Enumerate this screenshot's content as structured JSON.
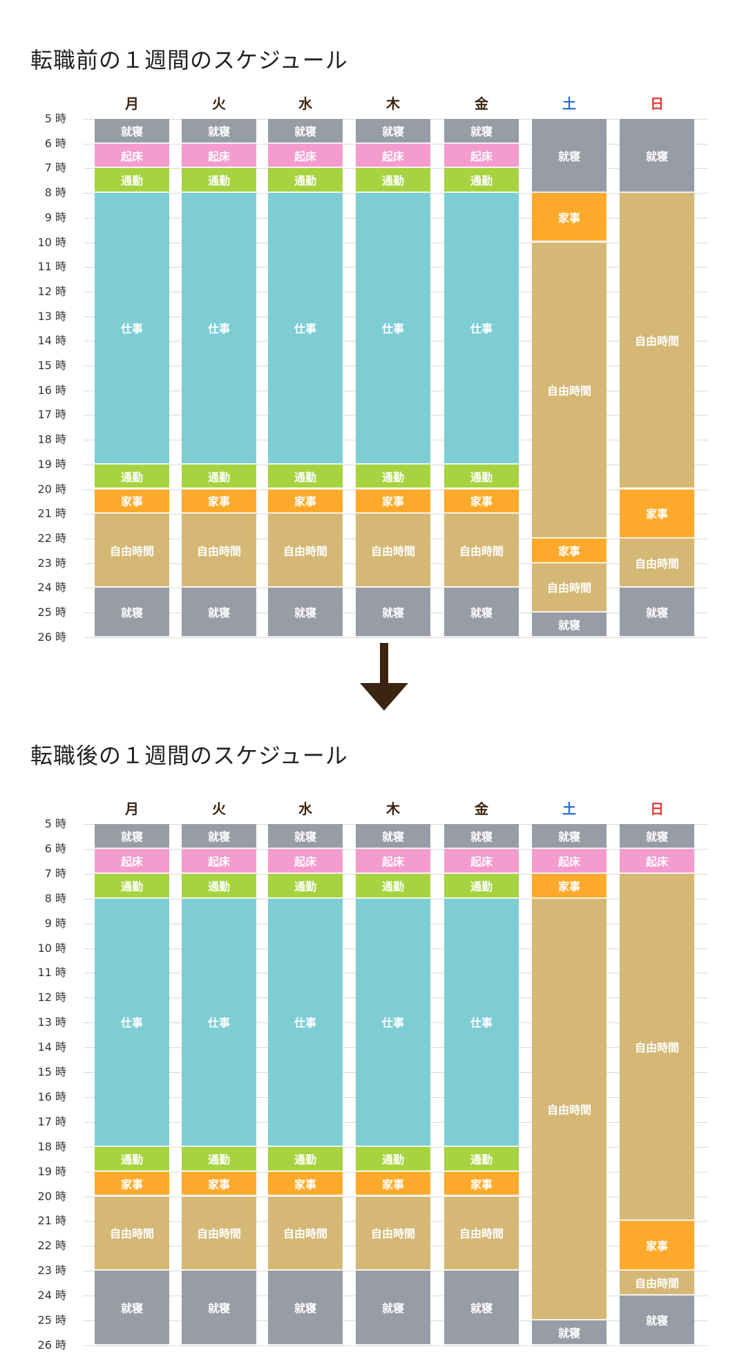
{
  "colors": {
    "就寝": "#989ca6",
    "起床": "#f49ccd",
    "通勤": "#a6d33f",
    "仕事": "#7ecdd5",
    "家事": "#fdaa2c",
    "自由時間": "#d5b876",
    "weekday_header": "#3b2410",
    "saturday_header": "#2f6fcf",
    "sunday_header": "#e03a3a",
    "arrow": "#3b2410"
  },
  "arrow_icon": "down-arrow-icon",
  "chart_data": [
    {
      "type": "table",
      "title": "転職前の１週間のスケジュール",
      "days": [
        "月",
        "火",
        "水",
        "木",
        "金",
        "土",
        "日"
      ],
      "hour_range": [
        5,
        26
      ],
      "hour_labels": [
        "5 時",
        "6 時",
        "7 時",
        "8 時",
        "9 時",
        "10 時",
        "11 時",
        "12 時",
        "13 時",
        "14 時",
        "15 時",
        "16 時",
        "17 時",
        "18 時",
        "19 時",
        "20 時",
        "21 時",
        "22 時",
        "23 時",
        "24 時",
        "25 時",
        "26 時"
      ],
      "schedule": [
        [
          {
            "start": 5,
            "end": 6,
            "activity": "就寝"
          },
          {
            "start": 6,
            "end": 7,
            "activity": "起床"
          },
          {
            "start": 7,
            "end": 8,
            "activity": "通勤"
          },
          {
            "start": 8,
            "end": 19,
            "activity": "仕事"
          },
          {
            "start": 19,
            "end": 20,
            "activity": "通勤"
          },
          {
            "start": 20,
            "end": 21,
            "activity": "家事"
          },
          {
            "start": 21,
            "end": 24,
            "activity": "自由時間"
          },
          {
            "start": 24,
            "end": 26,
            "activity": "就寝"
          }
        ],
        [
          {
            "start": 5,
            "end": 6,
            "activity": "就寝"
          },
          {
            "start": 6,
            "end": 7,
            "activity": "起床"
          },
          {
            "start": 7,
            "end": 8,
            "activity": "通勤"
          },
          {
            "start": 8,
            "end": 19,
            "activity": "仕事"
          },
          {
            "start": 19,
            "end": 20,
            "activity": "通勤"
          },
          {
            "start": 20,
            "end": 21,
            "activity": "家事"
          },
          {
            "start": 21,
            "end": 24,
            "activity": "自由時間"
          },
          {
            "start": 24,
            "end": 26,
            "activity": "就寝"
          }
        ],
        [
          {
            "start": 5,
            "end": 6,
            "activity": "就寝"
          },
          {
            "start": 6,
            "end": 7,
            "activity": "起床"
          },
          {
            "start": 7,
            "end": 8,
            "activity": "通勤"
          },
          {
            "start": 8,
            "end": 19,
            "activity": "仕事"
          },
          {
            "start": 19,
            "end": 20,
            "activity": "通勤"
          },
          {
            "start": 20,
            "end": 21,
            "activity": "家事"
          },
          {
            "start": 21,
            "end": 24,
            "activity": "自由時間"
          },
          {
            "start": 24,
            "end": 26,
            "activity": "就寝"
          }
        ],
        [
          {
            "start": 5,
            "end": 6,
            "activity": "就寝"
          },
          {
            "start": 6,
            "end": 7,
            "activity": "起床"
          },
          {
            "start": 7,
            "end": 8,
            "activity": "通勤"
          },
          {
            "start": 8,
            "end": 19,
            "activity": "仕事"
          },
          {
            "start": 19,
            "end": 20,
            "activity": "通勤"
          },
          {
            "start": 20,
            "end": 21,
            "activity": "家事"
          },
          {
            "start": 21,
            "end": 24,
            "activity": "自由時間"
          },
          {
            "start": 24,
            "end": 26,
            "activity": "就寝"
          }
        ],
        [
          {
            "start": 5,
            "end": 6,
            "activity": "就寝"
          },
          {
            "start": 6,
            "end": 7,
            "activity": "起床"
          },
          {
            "start": 7,
            "end": 8,
            "activity": "通勤"
          },
          {
            "start": 8,
            "end": 19,
            "activity": "仕事"
          },
          {
            "start": 19,
            "end": 20,
            "activity": "通勤"
          },
          {
            "start": 20,
            "end": 21,
            "activity": "家事"
          },
          {
            "start": 21,
            "end": 24,
            "activity": "自由時間"
          },
          {
            "start": 24,
            "end": 26,
            "activity": "就寝"
          }
        ],
        [
          {
            "start": 5,
            "end": 8,
            "activity": "就寝"
          },
          {
            "start": 8,
            "end": 10,
            "activity": "家事"
          },
          {
            "start": 10,
            "end": 22,
            "activity": "自由時間"
          },
          {
            "start": 22,
            "end": 23,
            "activity": "家事"
          },
          {
            "start": 23,
            "end": 25,
            "activity": "自由時間"
          },
          {
            "start": 25,
            "end": 26,
            "activity": "就寝"
          }
        ],
        [
          {
            "start": 5,
            "end": 8,
            "activity": "就寝"
          },
          {
            "start": 8,
            "end": 20,
            "activity": "自由時間"
          },
          {
            "start": 20,
            "end": 22,
            "activity": "家事"
          },
          {
            "start": 22,
            "end": 24,
            "activity": "自由時間"
          },
          {
            "start": 24,
            "end": 26,
            "activity": "就寝"
          }
        ]
      ]
    },
    {
      "type": "table",
      "title": "転職後の１週間のスケジュール",
      "days": [
        "月",
        "火",
        "水",
        "木",
        "金",
        "土",
        "日"
      ],
      "hour_range": [
        5,
        26
      ],
      "hour_labels": [
        "5 時",
        "6 時",
        "7 時",
        "8 時",
        "9 時",
        "10 時",
        "11 時",
        "12 時",
        "13 時",
        "14 時",
        "15 時",
        "16 時",
        "17 時",
        "18 時",
        "19 時",
        "20 時",
        "21 時",
        "22 時",
        "23 時",
        "24 時",
        "25 時",
        "26 時"
      ],
      "schedule": [
        [
          {
            "start": 5,
            "end": 6,
            "activity": "就寝"
          },
          {
            "start": 6,
            "end": 7,
            "activity": "起床"
          },
          {
            "start": 7,
            "end": 8,
            "activity": "通勤"
          },
          {
            "start": 8,
            "end": 18,
            "activity": "仕事"
          },
          {
            "start": 18,
            "end": 19,
            "activity": "通勤"
          },
          {
            "start": 19,
            "end": 20,
            "activity": "家事"
          },
          {
            "start": 20,
            "end": 23,
            "activity": "自由時間"
          },
          {
            "start": 23,
            "end": 26,
            "activity": "就寝"
          }
        ],
        [
          {
            "start": 5,
            "end": 6,
            "activity": "就寝"
          },
          {
            "start": 6,
            "end": 7,
            "activity": "起床"
          },
          {
            "start": 7,
            "end": 8,
            "activity": "通勤"
          },
          {
            "start": 8,
            "end": 18,
            "activity": "仕事"
          },
          {
            "start": 18,
            "end": 19,
            "activity": "通勤"
          },
          {
            "start": 19,
            "end": 20,
            "activity": "家事"
          },
          {
            "start": 20,
            "end": 23,
            "activity": "自由時間"
          },
          {
            "start": 23,
            "end": 26,
            "activity": "就寝"
          }
        ],
        [
          {
            "start": 5,
            "end": 6,
            "activity": "就寝"
          },
          {
            "start": 6,
            "end": 7,
            "activity": "起床"
          },
          {
            "start": 7,
            "end": 8,
            "activity": "通勤"
          },
          {
            "start": 8,
            "end": 18,
            "activity": "仕事"
          },
          {
            "start": 18,
            "end": 19,
            "activity": "通勤"
          },
          {
            "start": 19,
            "end": 20,
            "activity": "家事"
          },
          {
            "start": 20,
            "end": 23,
            "activity": "自由時間"
          },
          {
            "start": 23,
            "end": 26,
            "activity": "就寝"
          }
        ],
        [
          {
            "start": 5,
            "end": 6,
            "activity": "就寝"
          },
          {
            "start": 6,
            "end": 7,
            "activity": "起床"
          },
          {
            "start": 7,
            "end": 8,
            "activity": "通勤"
          },
          {
            "start": 8,
            "end": 18,
            "activity": "仕事"
          },
          {
            "start": 18,
            "end": 19,
            "activity": "通勤"
          },
          {
            "start": 19,
            "end": 20,
            "activity": "家事"
          },
          {
            "start": 20,
            "end": 23,
            "activity": "自由時間"
          },
          {
            "start": 23,
            "end": 26,
            "activity": "就寝"
          }
        ],
        [
          {
            "start": 5,
            "end": 6,
            "activity": "就寝"
          },
          {
            "start": 6,
            "end": 7,
            "activity": "起床"
          },
          {
            "start": 7,
            "end": 8,
            "activity": "通勤"
          },
          {
            "start": 8,
            "end": 18,
            "activity": "仕事"
          },
          {
            "start": 18,
            "end": 19,
            "activity": "通勤"
          },
          {
            "start": 19,
            "end": 20,
            "activity": "家事"
          },
          {
            "start": 20,
            "end": 23,
            "activity": "自由時間"
          },
          {
            "start": 23,
            "end": 26,
            "activity": "就寝"
          }
        ],
        [
          {
            "start": 5,
            "end": 6,
            "activity": "就寝"
          },
          {
            "start": 6,
            "end": 7,
            "activity": "起床"
          },
          {
            "start": 7,
            "end": 8,
            "activity": "家事"
          },
          {
            "start": 8,
            "end": 25,
            "activity": "自由時間"
          },
          {
            "start": 25,
            "end": 26,
            "activity": "就寝"
          }
        ],
        [
          {
            "start": 5,
            "end": 6,
            "activity": "就寝"
          },
          {
            "start": 6,
            "end": 7,
            "activity": "起床"
          },
          {
            "start": 7,
            "end": 21,
            "activity": "自由時間"
          },
          {
            "start": 21,
            "end": 23,
            "activity": "家事"
          },
          {
            "start": 23,
            "end": 24,
            "activity": "自由時間"
          },
          {
            "start": 24,
            "end": 26,
            "activity": "就寝"
          }
        ]
      ]
    }
  ]
}
